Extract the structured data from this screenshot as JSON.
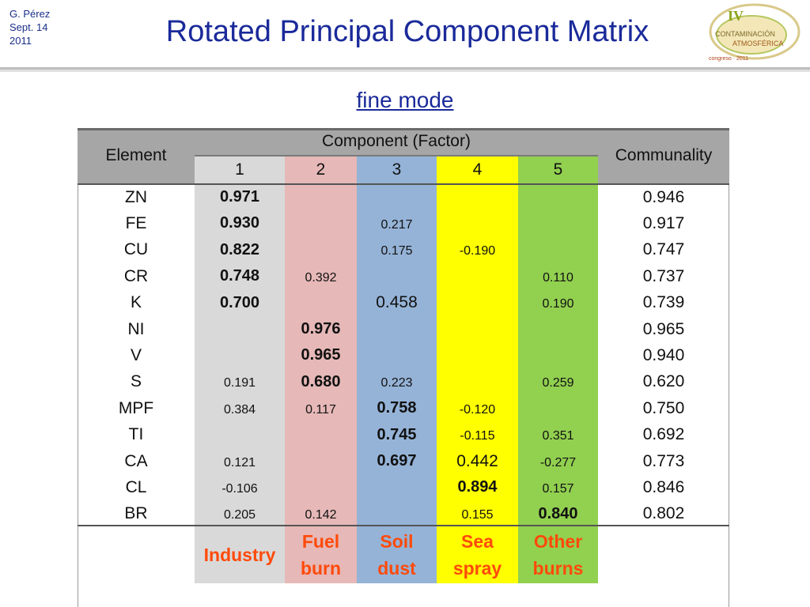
{
  "header": {
    "author": "G. Pérez",
    "date_line1": "Sept. 14",
    "date_line2": "2011",
    "title": "Rotated Principal Component Matrix",
    "logo_text": "IV Congreso de Contaminación Atmosférica"
  },
  "subtitle": "fine mode",
  "table": {
    "element_header": "Element",
    "component_header": "Component  (Factor)",
    "communality_header": "Communality",
    "factor_numbers": [
      "1",
      "2",
      "3",
      "4",
      "5"
    ],
    "factor_colors": [
      "#d9d9d9",
      "#e6b8b7",
      "#95b3d7",
      "#ffff00",
      "#92d050"
    ],
    "rows": [
      {
        "element": "ZN",
        "f1": "0.971",
        "f2": "",
        "f3": "",
        "f4": "",
        "f5": "",
        "communality": "0.946"
      },
      {
        "element": "FE",
        "f1": "0.930",
        "f2": "",
        "f3": "0.217",
        "f4": "",
        "f5": "",
        "communality": "0.917"
      },
      {
        "element": "CU",
        "f1": "0.822",
        "f2": "",
        "f3": "0.175",
        "f4": "-0.190",
        "f5": "",
        "communality": "0.747"
      },
      {
        "element": "CR",
        "f1": "0.748",
        "f2": "0.392",
        "f3": "",
        "f4": "",
        "f5": "0.110",
        "communality": "0.737"
      },
      {
        "element": "K",
        "f1": "0.700",
        "f2": "",
        "f3": "0.458",
        "f4": "",
        "f5": "0.190",
        "communality": "0.739"
      },
      {
        "element": "NI",
        "f1": "",
        "f2": "0.976",
        "f3": "",
        "f4": "",
        "f5": "",
        "communality": "0.965"
      },
      {
        "element": "V",
        "f1": "",
        "f2": "0.965",
        "f3": "",
        "f4": "",
        "f5": "",
        "communality": "0.940"
      },
      {
        "element": "S",
        "f1": "0.191",
        "f2": "0.680",
        "f3": "0.223",
        "f4": "",
        "f5": "0.259",
        "communality": "0.620"
      },
      {
        "element": "MPF",
        "f1": "0.384",
        "f2": "0.117",
        "f3": "0.758",
        "f4": "-0.120",
        "f5": "",
        "communality": "0.750"
      },
      {
        "element": "TI",
        "f1": "",
        "f2": "",
        "f3": "0.745",
        "f4": "-0.115",
        "f5": "0.351",
        "communality": "0.692"
      },
      {
        "element": "CA",
        "f1": "0.121",
        "f2": "",
        "f3": "0.697",
        "f4": "0.442",
        "f5": "-0.277",
        "communality": "0.773"
      },
      {
        "element": "CL",
        "f1": "-0.106",
        "f2": "",
        "f3": "",
        "f4": "0.894",
        "f5": "0.157",
        "communality": "0.846"
      },
      {
        "element": "BR",
        "f1": "0.205",
        "f2": "0.142",
        "f3": "",
        "f4": "0.155",
        "f5": "0.840",
        "communality": "0.802"
      }
    ],
    "bold_cells": [
      "0.f1",
      "1.f1",
      "2.f1",
      "3.f1",
      "4.f1",
      "5.f2",
      "6.f2",
      "7.f2",
      "8.f3",
      "9.f3",
      "10.f3",
      "11.f4",
      "12.f5"
    ],
    "large_cells": [
      "4.f3",
      "10.f4"
    ],
    "sources": [
      {
        "line1": "Industry",
        "line2": ""
      },
      {
        "line1": "Fuel",
        "line2": "burn"
      },
      {
        "line1": "Soil",
        "line2": "dust"
      },
      {
        "line1": "Sea",
        "line2": "spray"
      },
      {
        "line1": "Other",
        "line2": "burns"
      }
    ],
    "source_color": "#ff4a0a"
  }
}
